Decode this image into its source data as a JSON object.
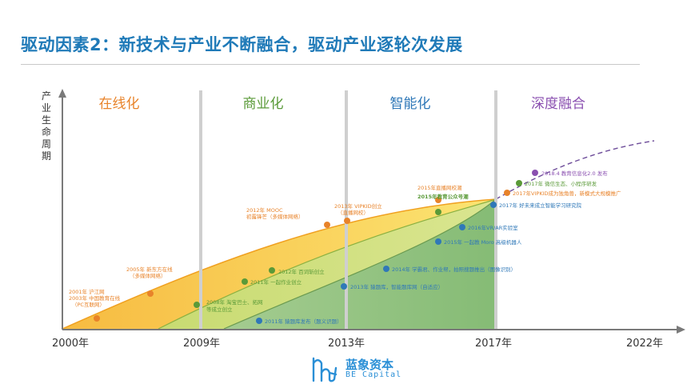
{
  "title": "驱动因素2：新技术与产业不断融合，驱动产业逐轮次发展",
  "y_axis_label": "产业生命周期",
  "phases": [
    {
      "label": "在线化",
      "color": "#e8832a"
    },
    {
      "label": "商业化",
      "color": "#5a9a38"
    },
    {
      "label": "智能化",
      "color": "#2f78b8"
    },
    {
      "label": "深度融合",
      "color": "#8a4fb0"
    }
  ],
  "x_ticks": [
    "2000年",
    "2009年",
    "2013年",
    "2017年",
    "2022年"
  ],
  "events": [
    {
      "text": "2001年 沪江网",
      "color": "#e8832a"
    },
    {
      "text": "2003年 中国教育在线",
      "color": "#e8832a"
    },
    {
      "text": "（PC互联网）",
      "color": "#e8832a"
    },
    {
      "text": "2005年 新东方在线",
      "color": "#e8832a"
    },
    {
      "text": "（多媒体网络）",
      "color": "#e8832a"
    },
    {
      "text": "2012年 MOOC",
      "color": "#e8832a"
    },
    {
      "text": "初露锋芒（多媒体网络）",
      "color": "#e8832a"
    },
    {
      "text": "2013年 VIPKID创立",
      "color": "#e8832a"
    },
    {
      "text": "（直播网校）",
      "color": "#e8832a"
    },
    {
      "text": "2015年直播网校潮",
      "color": "#e8832a"
    },
    {
      "text": "2015年教育公众号潮",
      "color": "#5a9a38"
    },
    {
      "text": "2008年 淘宝巴士、拓网",
      "color": "#5a9a38"
    },
    {
      "text": "等成立创立",
      "color": "#5a9a38"
    },
    {
      "text": "2011年 一起作业创立",
      "color": "#5a9a38"
    },
    {
      "text": "2012年 百词斩创立",
      "color": "#5a9a38"
    },
    {
      "text": "2011年 猿题库发布（题义识题）",
      "color": "#2f78b8"
    },
    {
      "text": "2013年 猿题库，智能题库网（自适应）",
      "color": "#2f78b8"
    },
    {
      "text": "2014年 学霸君、作业帮，拍照搜题推出（图像识别）",
      "color": "#2f78b8"
    },
    {
      "text": "2015年 一起教 Moro 高级机器人",
      "color": "#2f78b8"
    },
    {
      "text": "2016年VR/AR实验室",
      "color": "#2f78b8"
    },
    {
      "text": "2017年 好未来成立智能学习研究院",
      "color": "#2f78b8"
    },
    {
      "text": "2017年VIPKID成为独角兽，新模式大规模推广",
      "color": "#e8832a"
    },
    {
      "text": "2017年 微信生态、小程序研发",
      "color": "#5a9a38"
    },
    {
      "text": "2018.4 教育信息化2.0 发布",
      "color": "#8a4fb0"
    }
  ],
  "logo": {
    "name": "蓝象资本",
    "sub": "BE Capital"
  }
}
